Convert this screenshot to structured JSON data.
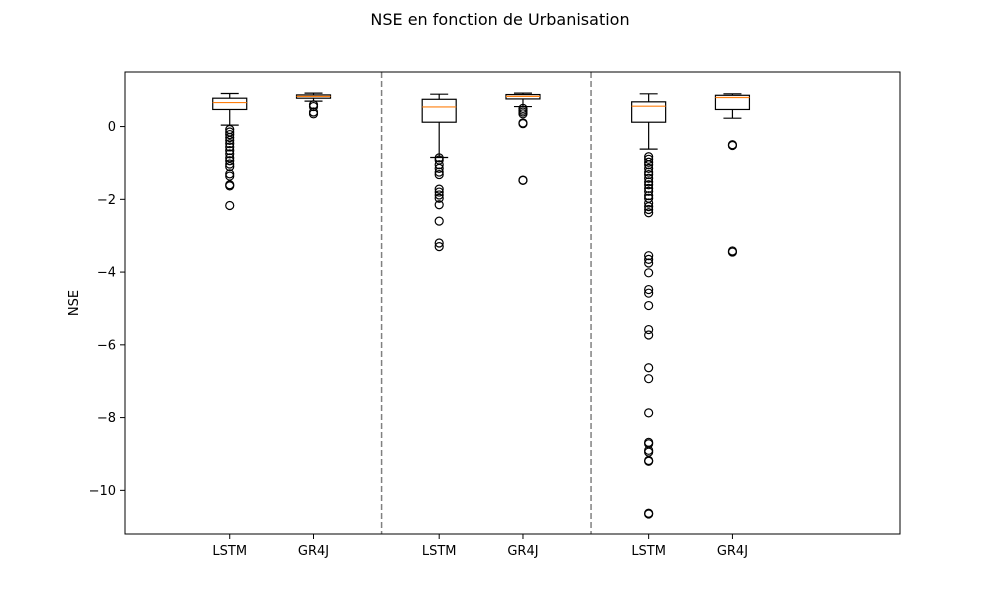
{
  "chart_data": {
    "type": "box",
    "title": "NSE en fonction de Urbanisation",
    "xlabel": "",
    "ylabel": "NSE",
    "ylim": [
      -11.2,
      1.5
    ],
    "yticks": [
      0,
      -2,
      -4,
      -6,
      -8,
      -10
    ],
    "ytick_labels": [
      "0",
      "−2",
      "−4",
      "−6",
      "−8",
      "−10"
    ],
    "xlim": [
      0,
      7.4
    ],
    "separators_x": [
      2.45,
      4.45
    ],
    "grid": false,
    "colors": {
      "box": "#000000",
      "median": "#ff7f0e",
      "separator": "#808080"
    },
    "boxes": [
      {
        "label": "LSTM",
        "x": 1,
        "q1": 0.47,
        "median": 0.66,
        "q3": 0.78,
        "whisker_low": 0.04,
        "whisker_high": 0.91,
        "outliers": [
          -0.08,
          -0.15,
          -0.22,
          -0.3,
          -0.38,
          -0.47,
          -0.56,
          -0.66,
          -0.75,
          -0.86,
          -0.94,
          -1.03,
          -1.1,
          -1.3,
          -1.36,
          -1.6,
          -1.63,
          -2.17
        ]
      },
      {
        "label": "GR4J",
        "x": 1.8,
        "q1": 0.78,
        "median": 0.83,
        "q3": 0.87,
        "whisker_low": 0.7,
        "whisker_high": 0.92,
        "outliers": [
          0.55,
          0.6,
          0.4,
          0.35
        ]
      },
      {
        "label": "LSTM",
        "x": 3,
        "q1": 0.12,
        "median": 0.54,
        "q3": 0.75,
        "whisker_low": -0.85,
        "whisker_high": 0.89,
        "outliers": [
          -0.86,
          -0.92,
          -1.05,
          -1.15,
          -1.25,
          -1.32,
          -1.72,
          -1.8,
          -1.88,
          -1.97,
          -2.15,
          -2.6,
          -3.2,
          -3.3
        ]
      },
      {
        "label": "GR4J",
        "x": 3.8,
        "q1": 0.76,
        "median": 0.83,
        "q3": 0.88,
        "whisker_low": 0.55,
        "whisker_high": 0.92,
        "outliers": [
          0.5,
          0.45,
          0.4,
          0.35,
          0.1,
          0.08,
          -1.47,
          -1.48
        ]
      },
      {
        "label": "LSTM",
        "x": 5,
        "q1": 0.12,
        "median": 0.56,
        "q3": 0.68,
        "whisker_low": -0.62,
        "whisker_high": 0.9,
        "outliers": [
          -0.83,
          -0.9,
          -0.98,
          -1.05,
          -1.15,
          -1.25,
          -1.32,
          -1.42,
          -1.52,
          -1.6,
          -1.7,
          -1.78,
          -1.9,
          -1.97,
          -2.1,
          -2.2,
          -2.28,
          -2.37,
          -3.55,
          -3.65,
          -3.75,
          -4.02,
          -4.48,
          -4.58,
          -4.92,
          -5.58,
          -5.73,
          -6.63,
          -6.93,
          -7.87,
          -8.68,
          -8.72,
          -8.9,
          -8.95,
          -9.18,
          -9.2,
          -10.63,
          -10.65
        ]
      },
      {
        "label": "GR4J",
        "x": 5.8,
        "q1": 0.47,
        "median": 0.8,
        "q3": 0.86,
        "whisker_low": 0.23,
        "whisker_high": 0.9,
        "outliers": [
          -0.5,
          -0.52,
          -3.42,
          -3.45
        ]
      }
    ]
  }
}
